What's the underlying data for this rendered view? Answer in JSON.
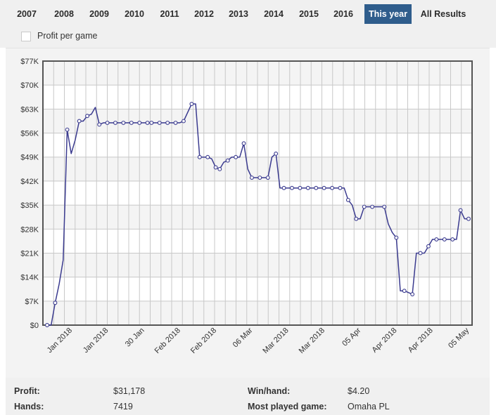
{
  "tabs": [
    {
      "label": "2007",
      "active": false
    },
    {
      "label": "2008",
      "active": false
    },
    {
      "label": "2009",
      "active": false
    },
    {
      "label": "2010",
      "active": false
    },
    {
      "label": "2011",
      "active": false
    },
    {
      "label": "2012",
      "active": false
    },
    {
      "label": "2013",
      "active": false
    },
    {
      "label": "2014",
      "active": false
    },
    {
      "label": "2015",
      "active": false
    },
    {
      "label": "2016",
      "active": false
    },
    {
      "label": "This year",
      "active": true
    },
    {
      "label": "All Results",
      "active": false
    }
  ],
  "options": {
    "profit_per_game_label": "Profit per game",
    "profit_per_game_checked": false
  },
  "colors": {
    "accent": "#2f5d8c",
    "series_line": "#3b3b8f",
    "marker_fill": "#ffffff"
  },
  "chart_data": {
    "type": "line",
    "title": "",
    "xlabel": "",
    "ylabel": "",
    "ylim": [
      0,
      77000
    ],
    "y_ticks": [
      "$0",
      "$7K",
      "$14K",
      "$21K",
      "$28K",
      "$35K",
      "$42K",
      "$49K",
      "$56K",
      "$63K",
      "$70K",
      "$77K"
    ],
    "x_tick_labels": [
      "Jan 2018",
      "Jan 2018",
      "30 Jan",
      "Feb 2018",
      "Feb 2018",
      "06 Mar",
      "Mar 2018",
      "Mar 2018",
      "05 Apr",
      "Apr 2018",
      "Apr 2018",
      "05 May"
    ],
    "grid": true,
    "series": [
      {
        "values": [
          0,
          0,
          6500,
          12000,
          19000,
          57000,
          50000,
          54000,
          59500,
          59500,
          61000,
          61500,
          63500,
          58500,
          59000,
          59000,
          59000,
          59000,
          59000,
          59000,
          59000,
          59000,
          59000,
          59000,
          59000,
          59000,
          59000,
          59000,
          59000,
          59000,
          59000,
          59000,
          59000,
          59000,
          59500,
          62000,
          64500,
          64500,
          49000,
          49000,
          49000,
          48500,
          46000,
          45500,
          47500,
          48000,
          49000,
          49000,
          49000,
          53000,
          45500,
          43000,
          43000,
          43000,
          43000,
          43000,
          49000,
          50000,
          40000,
          40000,
          40000,
          40000,
          40000,
          40000,
          40000,
          40000,
          40000,
          40000,
          40000,
          40000,
          40000,
          40000,
          40000,
          40000,
          40000,
          36500,
          35000,
          31000,
          31000,
          34500,
          34500,
          34500,
          34500,
          34500,
          34500,
          29500,
          27000,
          25500,
          10000,
          10000,
          9500,
          9000,
          21000,
          21000,
          21000,
          23000,
          25000,
          25000,
          25000,
          25000,
          25000,
          25000,
          25000,
          33500,
          31000,
          31000
        ],
        "markers": [
          0,
          2,
          5,
          8,
          10,
          13,
          15,
          17,
          19,
          21,
          23,
          25,
          26,
          28,
          30,
          32,
          34,
          36,
          38,
          40,
          42,
          43,
          45,
          47,
          49,
          51,
          53,
          55,
          57,
          59,
          61,
          63,
          65,
          67,
          69,
          71,
          73,
          75,
          77,
          79,
          81,
          84,
          87,
          89,
          91,
          93,
          95,
          97,
          99,
          101,
          103,
          105
        ]
      }
    ]
  },
  "stats": {
    "profit_label": "Profit:",
    "profit_value": "$31,178",
    "hands_label": "Hands:",
    "hands_value": "7419",
    "winhand_label": "Win/hand:",
    "winhand_value": "$4.20",
    "most_played_label": "Most played game:",
    "most_played_value": "Omaha PL"
  }
}
